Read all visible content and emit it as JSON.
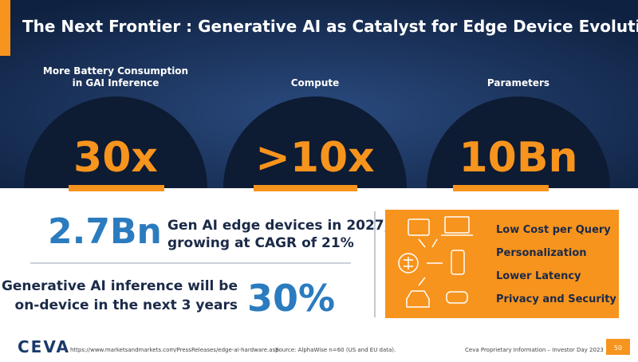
{
  "title": "The Next Frontier : Generative AI as Catalyst for Edge Device Evolution",
  "stats": [
    {
      "label": [
        "More Battery Consumption",
        "in GAI Inference"
      ],
      "value": "30x"
    },
    {
      "label": [
        "Compute"
      ],
      "value": ">10x"
    },
    {
      "label": [
        "Parameters"
      ],
      "value": "10Bn"
    }
  ],
  "devices": {
    "number": "2.7Bn",
    "text": [
      "Gen AI edge devices in 2027,",
      "growing at CAGR of 21%"
    ]
  },
  "inference": {
    "text": [
      "Generative AI inference will be",
      "on-device in the next 3 years"
    ],
    "number": "30%"
  },
  "features": [
    "Low Cost per Query",
    "Personalization",
    "Lower Latency",
    "Privacy and Security"
  ],
  "footer": {
    "logo": "CEVA",
    "url": "https://www.marketsandmarkets.com/PressReleases/edge-ai-hardware.asp",
    "source": "Source: AlphaWise n=60 (US and EU data).",
    "proprietary": "Ceva Proprietary Information – Investor Day 2023",
    "page": "50"
  }
}
